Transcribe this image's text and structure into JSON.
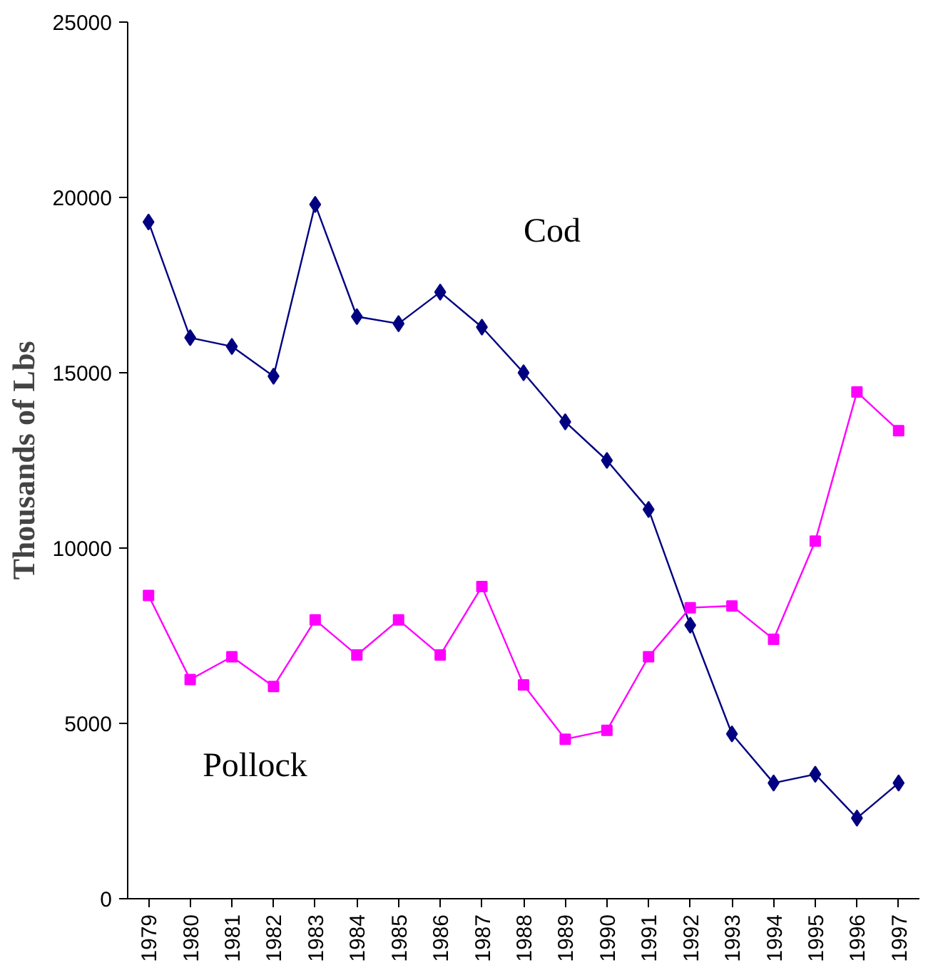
{
  "chart_data": {
    "type": "line",
    "ylabel": "Thousands of Lbs",
    "categories": [
      "1979",
      "1980",
      "1981",
      "1982",
      "1983",
      "1984",
      "1985",
      "1986",
      "1987",
      "1988",
      "1989",
      "1990",
      "1991",
      "1992",
      "1993",
      "1994",
      "1995",
      "1996",
      "1997"
    ],
    "series": [
      {
        "name": "Cod",
        "color": "#000080",
        "marker": "diamond",
        "values": [
          19300,
          16000,
          15750,
          14900,
          19800,
          16600,
          16400,
          17300,
          16300,
          15000,
          13600,
          12500,
          11100,
          7800,
          4700,
          3300,
          3550,
          2300,
          3300
        ]
      },
      {
        "name": "Pollock",
        "color": "#ff00ff",
        "marker": "square",
        "values": [
          8650,
          6250,
          6900,
          6050,
          7950,
          6950,
          7950,
          6950,
          8900,
          6100,
          4550,
          4800,
          6900,
          8300,
          8350,
          7400,
          10200,
          14450,
          13350
        ]
      }
    ],
    "ylim": [
      0,
      25000
    ],
    "yticks": [
      0,
      5000,
      10000,
      15000,
      20000,
      25000
    ],
    "grid": false,
    "line_style": "solid"
  }
}
